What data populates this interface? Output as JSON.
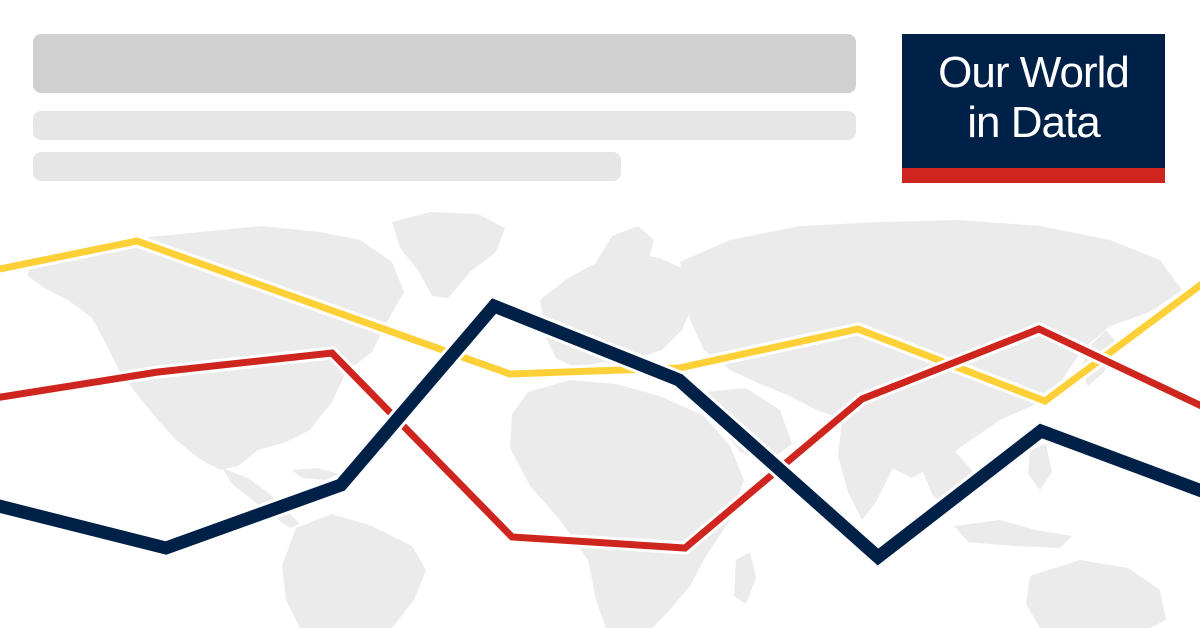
{
  "logo": {
    "line1": "Our World",
    "line2": "in Data"
  },
  "colors": {
    "navy": "#002147",
    "red": "#ce261e",
    "yellow": "#fdd038",
    "map_land": "#ebebeb",
    "placeholder_dark": "#d0d0d0",
    "placeholder_light": "#e6e6e6"
  },
  "decorative_lines": [
    {
      "color_key": "yellow"
    },
    {
      "color_key": "red"
    },
    {
      "color_key": "navy"
    }
  ]
}
